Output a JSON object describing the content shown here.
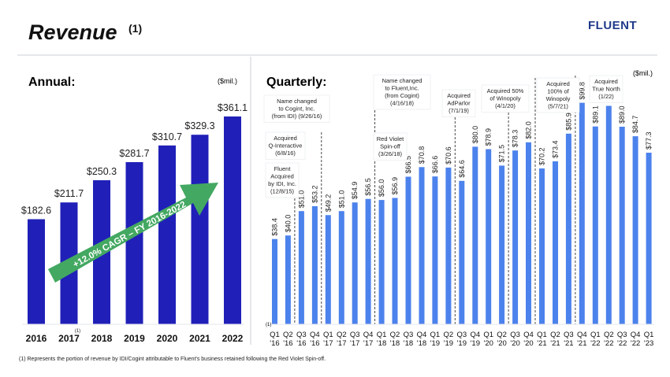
{
  "header": {
    "title": "Revenue",
    "title_note": "(1)",
    "brand": "FLUENT"
  },
  "footnote": "(1) Represents the portion of revenue by IDI/Cogint attributable to Fluent's business retained following the Red Violet Spin-off.",
  "colors": {
    "bar": "#2020b8",
    "quarterly_bar": "#4c82ec",
    "arrow": "#43a861",
    "brand": "#1e3a8a"
  },
  "chart_data": [
    {
      "type": "bar",
      "title": "Annual:",
      "unit_label": "($mil.)",
      "categories": [
        "2016",
        "2017",
        "2018",
        "2019",
        "2020",
        "2021",
        "2022"
      ],
      "category_notes": [
        "",
        "(1)",
        "",
        "",
        "",
        "",
        ""
      ],
      "values": [
        182.6,
        211.7,
        250.3,
        281.7,
        310.7,
        329.3,
        361.1
      ],
      "data_labels": [
        "$182.6",
        "$211.7",
        "$250.3",
        "$281.7",
        "$310.7",
        "$329.3",
        "$361.1"
      ],
      "ylim": [
        0,
        361.1
      ],
      "grid": false,
      "annotation": "+12.0% CAGR – FY 2016-2022"
    },
    {
      "type": "bar",
      "title": "Quarterly:",
      "unit_label": "($mil.)",
      "axis_note": "(1)",
      "categories": [
        [
          "Q1",
          "'16"
        ],
        [
          "Q2",
          "'16"
        ],
        [
          "Q3",
          "'16"
        ],
        [
          "Q4",
          "'16"
        ],
        [
          "Q1",
          "'17"
        ],
        [
          "Q2",
          "'17"
        ],
        [
          "Q3",
          "'17"
        ],
        [
          "Q4",
          "'17"
        ],
        [
          "Q1",
          "'18"
        ],
        [
          "Q2",
          "'18"
        ],
        [
          "Q3",
          "'18"
        ],
        [
          "Q4",
          "'18"
        ],
        [
          "Q1",
          "'19"
        ],
        [
          "Q2",
          "'19"
        ],
        [
          "Q3",
          "'19"
        ],
        [
          "Q4",
          "'19"
        ],
        [
          "Q1",
          "'20"
        ],
        [
          "Q2",
          "'20"
        ],
        [
          "Q3",
          "'20"
        ],
        [
          "Q4",
          "'20"
        ],
        [
          "Q1",
          "'21"
        ],
        [
          "Q2",
          "'21"
        ],
        [
          "Q3",
          "'21"
        ],
        [
          "Q4",
          "'21"
        ],
        [
          "Q1",
          "'22"
        ],
        [
          "Q2",
          "'22"
        ],
        [
          "Q3",
          "'22"
        ],
        [
          "Q4",
          "'22"
        ],
        [
          "Q1",
          "'23"
        ]
      ],
      "values": [
        38.4,
        40.0,
        51.0,
        53.2,
        49.2,
        51.0,
        54.9,
        56.5,
        56.0,
        56.9,
        66.5,
        70.8,
        66.6,
        70.6,
        64.6,
        80.0,
        78.9,
        71.5,
        78.3,
        82.0,
        70.2,
        73.4,
        85.9,
        99.8,
        89.1,
        98.4,
        89.0,
        84.7,
        77.3
      ],
      "data_labels": [
        "$38.4",
        "$40.0",
        "$51.0",
        "$53.2",
        "$49.2",
        "$51.0",
        "$54.9",
        "$56.5",
        "$56.0",
        "$56.9",
        "$66.5",
        "$70.8",
        "$66.6",
        "$70.6",
        "$64.6",
        "$80.0",
        "$78.9",
        "$71.5",
        "$78.3",
        "$82.0",
        "$70.2",
        "$73.4",
        "$85.9",
        "$99.8",
        "$89.1",
        "$98.4",
        "$89.0",
        "$84.7",
        "$77.3"
      ],
      "ylim": [
        0,
        100
      ],
      "grid": false,
      "events": [
        {
          "after_index": 1,
          "lines": [
            "Fluent",
            "Acquired",
            "by IDI, Inc.",
            "(12/8/15)"
          ]
        },
        {
          "after_index": 3,
          "lines": [
            "Acquired",
            "Q-Interactive",
            "(6/8/16)"
          ]
        },
        {
          "after_index": 3,
          "lines": [
            "Name changed",
            "to Cogint, Inc.",
            "(from IDI) (9/26/16)"
          ]
        },
        {
          "after_index": 7,
          "lines": [
            "Name changed",
            "to Fluent,Inc.",
            "(from Cogint)",
            "(4/16/18)"
          ]
        },
        {
          "after_index": 7,
          "lines": [
            "Red Violet",
            "Spin-off",
            "(3/26/18)"
          ]
        },
        {
          "after_index": 13,
          "lines": [
            "Acquired",
            "AdParlor",
            "(7/1/19)"
          ]
        },
        {
          "after_index": 17,
          "lines": [
            "Acquired 50%",
            "of Winopoly",
            "(4/1/20)"
          ]
        },
        {
          "after_index": 19,
          "lines": [
            "Acquired",
            "100% of",
            "Winopoly",
            "(5/7/21)"
          ]
        },
        {
          "after_index": 22,
          "lines": [
            "Acquired",
            "True North",
            "(1/22)"
          ]
        }
      ]
    }
  ]
}
